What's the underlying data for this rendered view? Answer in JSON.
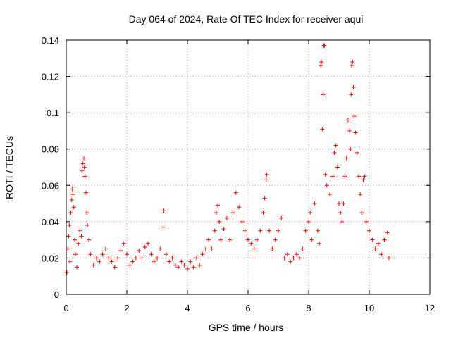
{
  "chart_data": {
    "type": "scatter",
    "title": "Day 064 of 2024, Rate Of TEC Index for receiver aqui",
    "xlabel": "GPS time / hours",
    "ylabel": "ROTI / TECUs",
    "xlim": [
      0,
      12
    ],
    "ylim": [
      0,
      0.14
    ],
    "x_ticks": [
      0,
      2,
      4,
      6,
      8,
      10,
      12
    ],
    "x_tick_labels": [
      "0",
      "2",
      "4",
      "6",
      "8",
      "10",
      "12"
    ],
    "y_ticks": [
      0,
      0.02,
      0.04,
      0.06,
      0.08,
      0.1,
      0.12,
      0.14
    ],
    "y_tick_labels": [
      "0",
      "0.02",
      "0.04",
      "0.06",
      "0.08",
      "0.1",
      "0.12",
      "0.14"
    ],
    "grid": true,
    "marker": "+",
    "series": [
      {
        "name": "ROTI",
        "color": "#ff0000",
        "points": [
          [
            0.02,
            0.012
          ],
          [
            0.05,
            0.025
          ],
          [
            0.08,
            0.032
          ],
          [
            0.1,
            0.038
          ],
          [
            0.12,
            0.018
          ],
          [
            0.15,
            0.045
          ],
          [
            0.18,
            0.052
          ],
          [
            0.2,
            0.058
          ],
          [
            0.22,
            0.055
          ],
          [
            0.25,
            0.048
          ],
          [
            0.28,
            0.03
          ],
          [
            0.3,
            0.022
          ],
          [
            0.35,
            0.015
          ],
          [
            0.4,
            0.028
          ],
          [
            0.45,
            0.035
          ],
          [
            0.5,
            0.032
          ],
          [
            0.52,
            0.068
          ],
          [
            0.55,
            0.072
          ],
          [
            0.58,
            0.075
          ],
          [
            0.6,
            0.07
          ],
          [
            0.62,
            0.065
          ],
          [
            0.65,
            0.056
          ],
          [
            0.68,
            0.045
          ],
          [
            0.7,
            0.038
          ],
          [
            0.75,
            0.03
          ],
          [
            0.8,
            0.022
          ],
          [
            0.9,
            0.016
          ],
          [
            1.0,
            0.02
          ],
          [
            1.1,
            0.018
          ],
          [
            1.2,
            0.022
          ],
          [
            1.3,
            0.025
          ],
          [
            1.4,
            0.02
          ],
          [
            1.5,
            0.018
          ],
          [
            1.6,
            0.015
          ],
          [
            1.7,
            0.02
          ],
          [
            1.8,
            0.024
          ],
          [
            1.9,
            0.028
          ],
          [
            2.0,
            0.022
          ],
          [
            2.1,
            0.016
          ],
          [
            2.2,
            0.018
          ],
          [
            2.3,
            0.02
          ],
          [
            2.4,
            0.024
          ],
          [
            2.5,
            0.02
          ],
          [
            2.6,
            0.026
          ],
          [
            2.7,
            0.028
          ],
          [
            2.8,
            0.022
          ],
          [
            2.9,
            0.018
          ],
          [
            3.0,
            0.02
          ],
          [
            3.1,
            0.025
          ],
          [
            3.2,
            0.037
          ],
          [
            3.22,
            0.046
          ],
          [
            3.3,
            0.022
          ],
          [
            3.4,
            0.018
          ],
          [
            3.5,
            0.02
          ],
          [
            3.6,
            0.016
          ],
          [
            3.7,
            0.015
          ],
          [
            3.8,
            0.018
          ],
          [
            3.9,
            0.016
          ],
          [
            4.0,
            0.014
          ],
          [
            4.1,
            0.018
          ],
          [
            4.2,
            0.015
          ],
          [
            4.3,
            0.02
          ],
          [
            4.4,
            0.016
          ],
          [
            4.5,
            0.022
          ],
          [
            4.6,
            0.025
          ],
          [
            4.7,
            0.03
          ],
          [
            4.8,
            0.025
          ],
          [
            4.9,
            0.035
          ],
          [
            4.95,
            0.045
          ],
          [
            5.0,
            0.049
          ],
          [
            5.05,
            0.04
          ],
          [
            5.1,
            0.03
          ],
          [
            5.2,
            0.036
          ],
          [
            5.3,
            0.042
          ],
          [
            5.4,
            0.03
          ],
          [
            5.5,
            0.045
          ],
          [
            5.6,
            0.056
          ],
          [
            5.7,
            0.048
          ],
          [
            5.8,
            0.04
          ],
          [
            5.9,
            0.035
          ],
          [
            6.0,
            0.03
          ],
          [
            6.1,
            0.028
          ],
          [
            6.2,
            0.025
          ],
          [
            6.3,
            0.03
          ],
          [
            6.4,
            0.035
          ],
          [
            6.5,
            0.045
          ],
          [
            6.55,
            0.053
          ],
          [
            6.6,
            0.063
          ],
          [
            6.62,
            0.066
          ],
          [
            6.7,
            0.035
          ],
          [
            6.8,
            0.025
          ],
          [
            6.9,
            0.03
          ],
          [
            7.0,
            0.035
          ],
          [
            7.1,
            0.042
          ],
          [
            7.2,
            0.02
          ],
          [
            7.3,
            0.022
          ],
          [
            7.4,
            0.018
          ],
          [
            7.5,
            0.02
          ],
          [
            7.6,
            0.022
          ],
          [
            7.7,
            0.02
          ],
          [
            7.8,
            0.025
          ],
          [
            7.9,
            0.035
          ],
          [
            8.0,
            0.04
          ],
          [
            8.05,
            0.045
          ],
          [
            8.1,
            0.03
          ],
          [
            8.2,
            0.05
          ],
          [
            8.3,
            0.035
          ],
          [
            8.35,
            0.028
          ],
          [
            8.4,
            0.126
          ],
          [
            8.42,
            0.128
          ],
          [
            8.45,
            0.091
          ],
          [
            8.48,
            0.11
          ],
          [
            8.5,
            0.137
          ],
          [
            8.52,
            0.137
          ],
          [
            8.55,
            0.066
          ],
          [
            8.6,
            0.06
          ],
          [
            8.7,
            0.055
          ],
          [
            8.8,
            0.065
          ],
          [
            8.85,
            0.078
          ],
          [
            8.9,
            0.082
          ],
          [
            8.95,
            0.07
          ],
          [
            9.0,
            0.05
          ],
          [
            9.05,
            0.045
          ],
          [
            9.1,
            0.04
          ],
          [
            9.15,
            0.05
          ],
          [
            9.2,
            0.065
          ],
          [
            9.25,
            0.075
          ],
          [
            9.3,
            0.096
          ],
          [
            9.35,
            0.09
          ],
          [
            9.38,
            0.08
          ],
          [
            9.4,
            0.11
          ],
          [
            9.42,
            0.126
          ],
          [
            9.45,
            0.128
          ],
          [
            9.48,
            0.114
          ],
          [
            9.5,
            0.098
          ],
          [
            9.55,
            0.089
          ],
          [
            9.6,
            0.078
          ],
          [
            9.65,
            0.065
          ],
          [
            9.7,
            0.055
          ],
          [
            9.75,
            0.045
          ],
          [
            9.8,
            0.063
          ],
          [
            9.85,
            0.065
          ],
          [
            9.9,
            0.04
          ],
          [
            10.0,
            0.035
          ],
          [
            10.1,
            0.03
          ],
          [
            10.2,
            0.025
          ],
          [
            10.3,
            0.028
          ],
          [
            10.4,
            0.022
          ],
          [
            10.5,
            0.03
          ],
          [
            10.6,
            0.034
          ],
          [
            10.65,
            0.02
          ]
        ]
      }
    ]
  }
}
